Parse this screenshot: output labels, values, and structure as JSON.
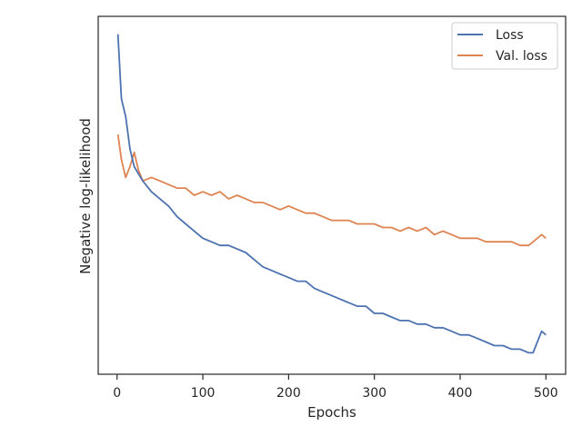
{
  "chart_data": {
    "type": "line",
    "title": "",
    "xlabel": "Epochs",
    "ylabel": "Negative log-likelihood",
    "xlim": [
      -22,
      523
    ],
    "ylim": [
      0,
      100
    ],
    "y_tick_labels_shown": false,
    "grid": false,
    "legend_position": "top-right",
    "x_ticks": [
      0,
      100,
      200,
      300,
      400,
      500
    ],
    "x_tick_labels": [
      "0",
      "100",
      "200",
      "300",
      "400",
      "500"
    ],
    "series": [
      {
        "name": "Loss",
        "color": "#4c72b0",
        "x": [
          1,
          5,
          10,
          15,
          20,
          25,
          30,
          40,
          50,
          60,
          70,
          80,
          90,
          100,
          110,
          120,
          130,
          140,
          150,
          160,
          170,
          180,
          190,
          200,
          210,
          220,
          230,
          240,
          250,
          260,
          270,
          280,
          290,
          300,
          310,
          320,
          330,
          340,
          350,
          360,
          370,
          380,
          390,
          400,
          410,
          420,
          430,
          440,
          450,
          460,
          470,
          480,
          485,
          490,
          495,
          500
        ],
        "y": [
          95,
          77,
          72,
          63,
          58,
          56,
          54,
          51,
          49,
          47,
          44,
          42,
          40,
          38,
          37,
          36,
          36,
          35,
          34,
          32,
          30,
          29,
          28,
          27,
          26,
          26,
          24,
          23,
          22,
          21,
          20,
          19,
          19,
          17,
          17,
          16,
          15,
          15,
          14,
          14,
          13,
          13,
          12,
          11,
          11,
          10,
          9,
          8,
          8,
          7,
          7,
          6,
          6,
          9,
          12,
          11
        ]
      },
      {
        "name": "Val. loss",
        "color": "#dd8452",
        "x": [
          1,
          5,
          10,
          15,
          20,
          25,
          30,
          40,
          50,
          60,
          70,
          80,
          90,
          100,
          110,
          120,
          130,
          140,
          150,
          160,
          170,
          180,
          190,
          200,
          210,
          220,
          230,
          240,
          250,
          260,
          270,
          280,
          290,
          300,
          310,
          320,
          330,
          340,
          350,
          360,
          370,
          380,
          390,
          400,
          410,
          420,
          430,
          440,
          450,
          460,
          470,
          480,
          485,
          490,
          495,
          500
        ],
        "y": [
          67,
          60,
          55,
          58,
          62,
          57,
          54,
          55,
          54,
          53,
          52,
          52,
          50,
          51,
          50,
          51,
          49,
          50,
          49,
          48,
          48,
          47,
          46,
          47,
          46,
          45,
          45,
          44,
          43,
          43,
          43,
          42,
          42,
          42,
          41,
          41,
          40,
          41,
          40,
          41,
          39,
          40,
          39,
          38,
          38,
          38,
          37,
          37,
          37,
          37,
          36,
          36,
          37,
          38,
          39,
          38
        ]
      }
    ]
  }
}
